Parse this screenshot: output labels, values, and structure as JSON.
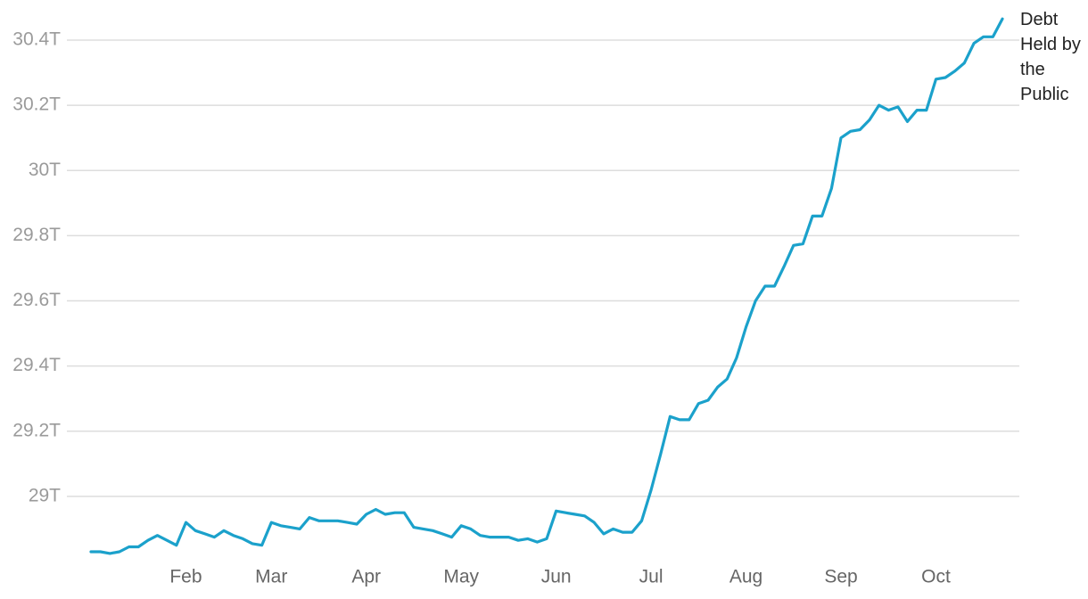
{
  "chart_data": {
    "type": "line",
    "categories": [
      null,
      null,
      null,
      null,
      null,
      null,
      null,
      null,
      null,
      null,
      "Feb",
      null,
      null,
      null,
      null,
      null,
      null,
      null,
      null,
      "Mar",
      null,
      null,
      null,
      null,
      null,
      null,
      null,
      null,
      null,
      "Apr",
      null,
      null,
      null,
      null,
      null,
      null,
      null,
      null,
      null,
      "May",
      null,
      null,
      null,
      null,
      null,
      null,
      null,
      null,
      null,
      "Jun",
      null,
      null,
      null,
      null,
      null,
      null,
      null,
      null,
      null,
      "Jul",
      null,
      null,
      null,
      null,
      null,
      null,
      null,
      null,
      null,
      "Aug",
      null,
      null,
      null,
      null,
      null,
      null,
      null,
      null,
      null,
      "Sep",
      null,
      null,
      null,
      null,
      null,
      null,
      null,
      null,
      null,
      "Oct",
      null,
      null,
      null,
      null,
      null,
      null,
      null
    ],
    "series": [
      {
        "name": "Debt Held by the Public",
        "color": "#1ba1cb",
        "values": [
          28.83,
          28.83,
          28.825,
          28.83,
          28.845,
          28.845,
          28.865,
          28.88,
          28.865,
          28.85,
          28.92,
          28.895,
          28.885,
          28.875,
          28.895,
          28.88,
          28.87,
          28.855,
          28.85,
          28.92,
          28.91,
          28.905,
          28.9,
          28.935,
          28.925,
          28.925,
          28.925,
          28.92,
          28.915,
          28.945,
          28.96,
          28.945,
          28.95,
          28.95,
          28.905,
          28.9,
          28.895,
          28.885,
          28.875,
          28.91,
          28.9,
          28.88,
          28.875,
          28.875,
          28.875,
          28.865,
          28.87,
          28.86,
          28.87,
          28.955,
          28.95,
          28.945,
          28.94,
          28.92,
          28.885,
          28.9,
          28.89,
          28.89,
          28.925,
          29.02,
          29.13,
          29.245,
          29.235,
          29.235,
          29.285,
          29.295,
          29.335,
          29.36,
          29.425,
          29.52,
          29.6,
          29.645,
          29.645,
          29.705,
          29.77,
          29.775,
          29.86,
          29.86,
          29.945,
          30.1,
          30.12,
          30.125,
          30.155,
          30.2,
          30.185,
          30.195,
          30.15,
          30.185,
          30.185,
          30.28,
          30.285,
          30.305,
          30.33,
          30.39,
          30.41,
          30.41,
          30.465
        ]
      }
    ],
    "ylim": [
      28.8,
      30.5
    ],
    "yticks": [
      {
        "value": 29,
        "label": "29T"
      },
      {
        "value": 29.2,
        "label": "29.2T"
      },
      {
        "value": 29.4,
        "label": "29.4T"
      },
      {
        "value": 29.6,
        "label": "29.6T"
      },
      {
        "value": 29.8,
        "label": "29.8T"
      },
      {
        "value": 30,
        "label": "30T"
      },
      {
        "value": 30.2,
        "label": "30.2T"
      },
      {
        "value": 30.4,
        "label": "30.4T"
      }
    ],
    "grid": true
  }
}
